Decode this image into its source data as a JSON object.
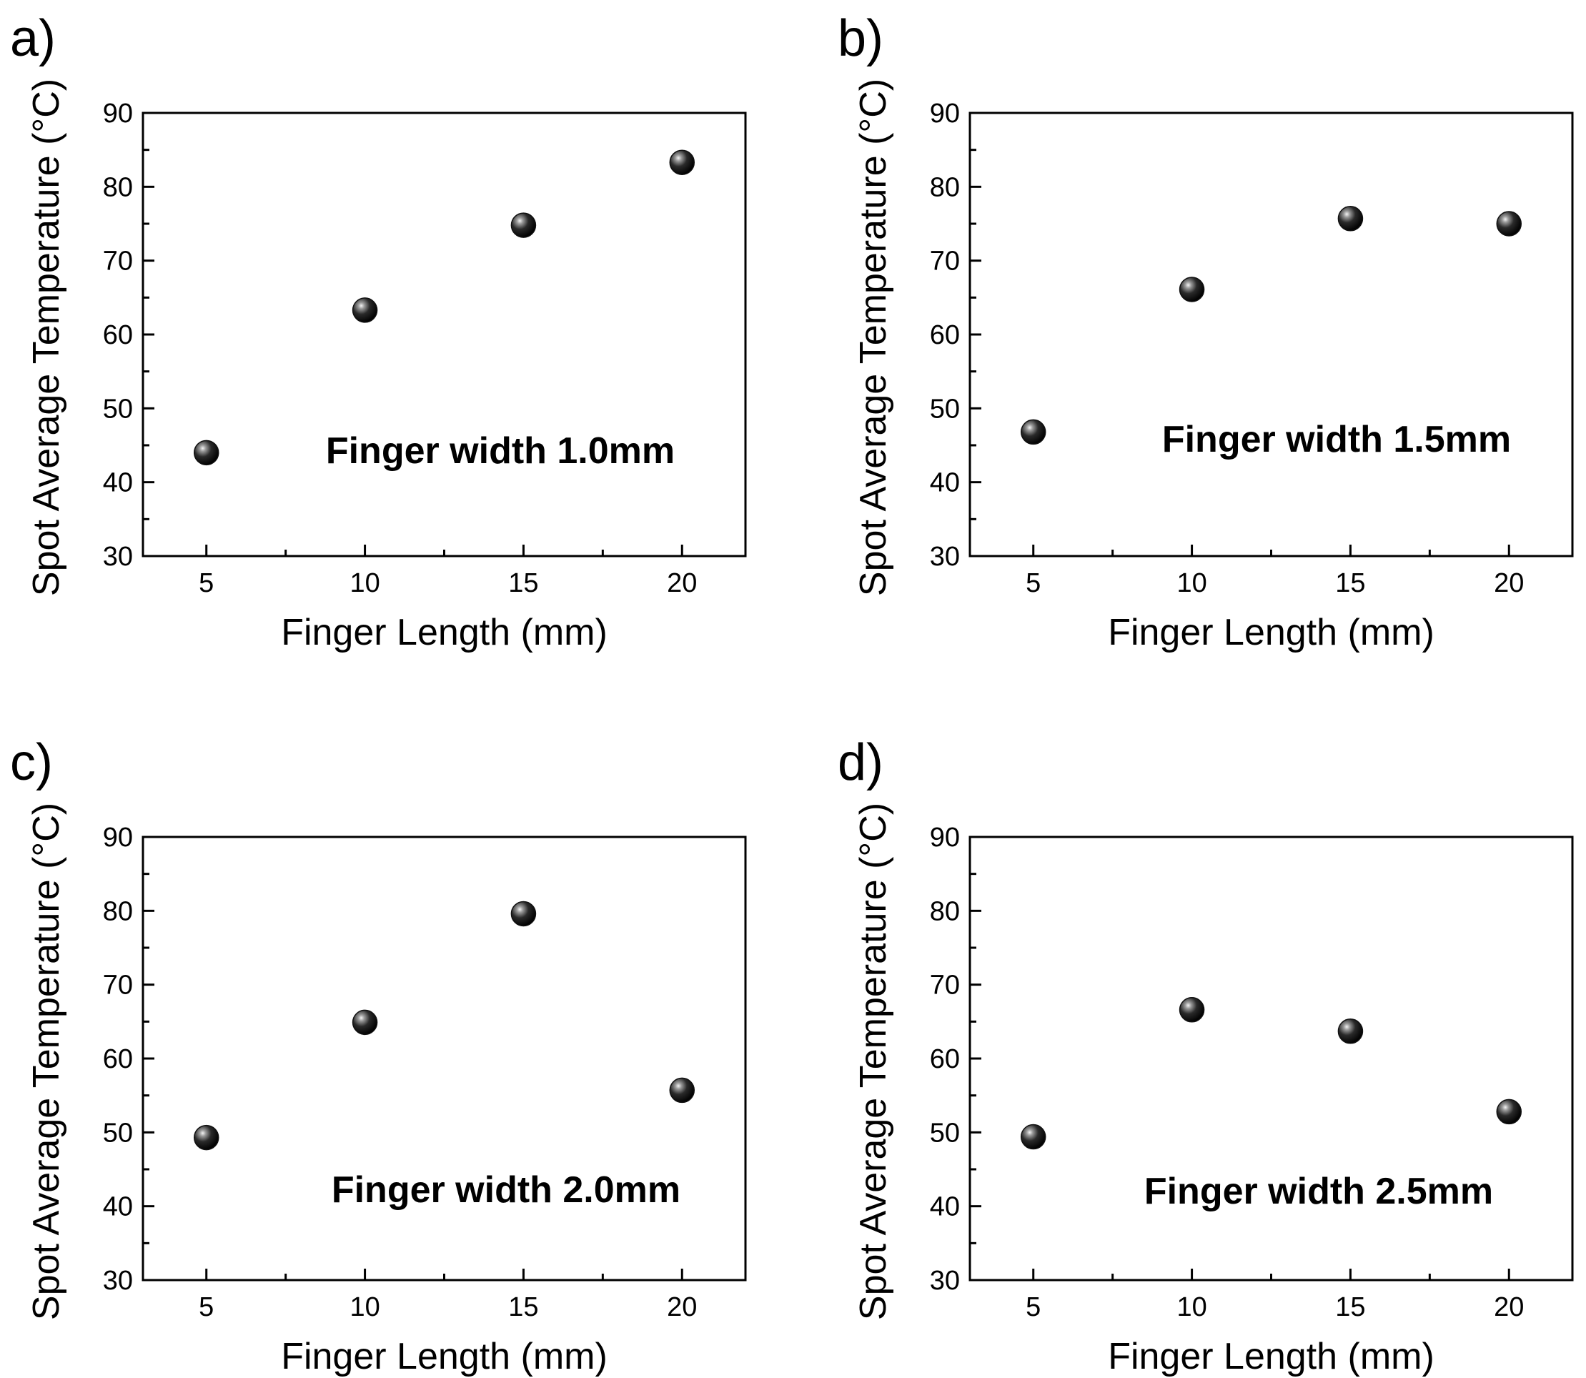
{
  "chart_data": [
    {
      "panel_label": "a)",
      "type": "scatter",
      "annotation": "Finger width 1.0mm",
      "xlabel": "Finger Length (mm)",
      "ylabel": "Spot Average Temperature (°C)",
      "xlim": [
        3,
        22
      ],
      "ylim": [
        30,
        90
      ],
      "xticks": [
        5,
        10,
        15,
        20
      ],
      "yticks": [
        30,
        40,
        50,
        60,
        70,
        80,
        90
      ],
      "x": [
        5,
        10,
        15,
        20
      ],
      "y": [
        44,
        63.3,
        74.8,
        83.3
      ],
      "grid": false,
      "legend": "none",
      "marker_color": "#111111"
    },
    {
      "panel_label": "b)",
      "type": "scatter",
      "annotation": "Finger width 1.5mm",
      "xlabel": "Finger Length (mm)",
      "ylabel": "Spot Average Temperature (°C)",
      "xlim": [
        3,
        22
      ],
      "ylim": [
        30,
        90
      ],
      "xticks": [
        5,
        10,
        15,
        20
      ],
      "yticks": [
        30,
        40,
        50,
        60,
        70,
        80,
        90
      ],
      "x": [
        5,
        10,
        15,
        20
      ],
      "y": [
        46.8,
        66.1,
        75.7,
        75
      ],
      "grid": false,
      "legend": "none",
      "marker_color": "#111111"
    },
    {
      "panel_label": "c)",
      "type": "scatter",
      "annotation": "Finger width 2.0mm",
      "xlabel": "Finger Length (mm)",
      "ylabel": "Spot Average Temperature (°C)",
      "xlim": [
        3,
        22
      ],
      "ylim": [
        30,
        90
      ],
      "xticks": [
        5,
        10,
        15,
        20
      ],
      "yticks": [
        30,
        40,
        50,
        60,
        70,
        80,
        90
      ],
      "x": [
        5,
        10,
        15,
        20
      ],
      "y": [
        49.3,
        64.9,
        79.6,
        55.7
      ],
      "grid": false,
      "legend": "none",
      "marker_color": "#111111"
    },
    {
      "panel_label": "d)",
      "type": "scatter",
      "annotation": "Finger width 2.5mm",
      "xlabel": "Finger Length (mm)",
      "ylabel": "Spot Average Temperature (°C)",
      "xlim": [
        3,
        22
      ],
      "ylim": [
        30,
        90
      ],
      "xticks": [
        5,
        10,
        15,
        20
      ],
      "yticks": [
        30,
        40,
        50,
        60,
        70,
        80,
        90
      ],
      "x": [
        5,
        10,
        15,
        20
      ],
      "y": [
        49.4,
        66.6,
        63.7,
        52.8
      ],
      "grid": false,
      "legend": "none",
      "marker_color": "#111111"
    }
  ]
}
